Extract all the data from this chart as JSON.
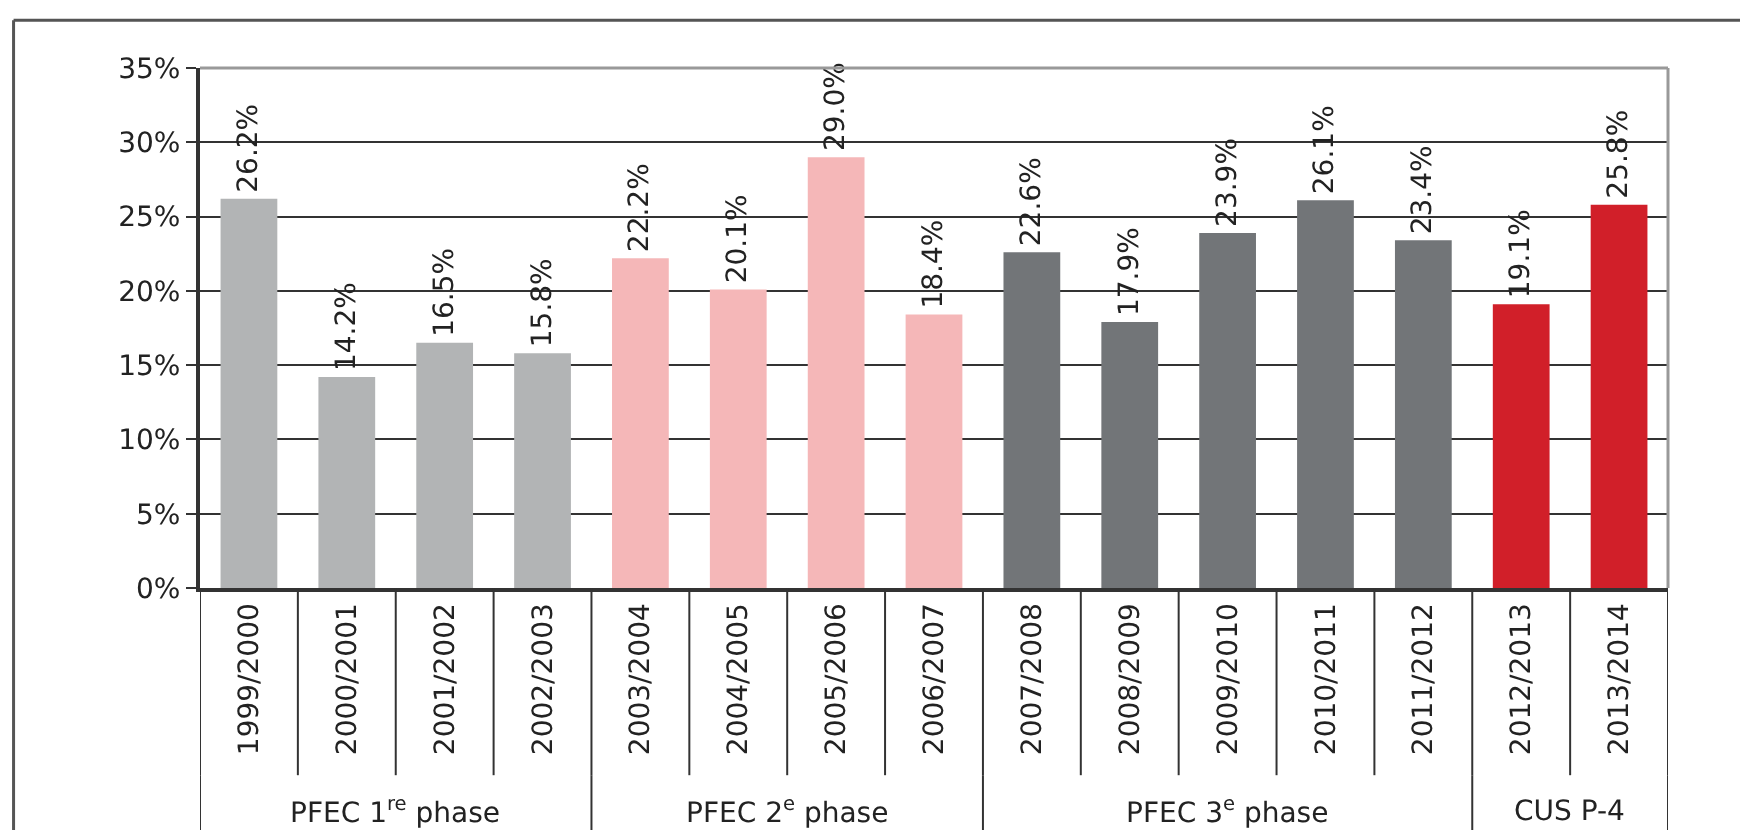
{
  "chart_data": {
    "type": "bar",
    "categories": [
      "1999/2000",
      "2000/2001",
      "2001/2002",
      "2002/2003",
      "2003/2004",
      "2004/2005",
      "2005/2006",
      "2006/2007",
      "2007/2008",
      "2008/2009",
      "2009/2010",
      "2010/2011",
      "2011/2012",
      "2012/2013",
      "2013/2014"
    ],
    "values": [
      26.2,
      14.2,
      16.5,
      15.8,
      22.2,
      20.1,
      29.0,
      18.4,
      22.6,
      17.9,
      23.9,
      26.1,
      23.4,
      19.1,
      25.8
    ],
    "value_labels": [
      "26.2%",
      "14.2%",
      "16.5%",
      "15.8%",
      "22.2%",
      "20.1%",
      "29.0%",
      "18.4%",
      "22.6%",
      "17.9%",
      "23.9%",
      "26.1%",
      "23.4%",
      "19.1%",
      "25.8%"
    ],
    "colors": [
      "#b2b4b5",
      "#b2b4b5",
      "#b2b4b5",
      "#b2b4b5",
      "#f5b7b8",
      "#f5b7b8",
      "#f5b7b8",
      "#f5b7b8",
      "#727578",
      "#727578",
      "#727578",
      "#727578",
      "#727578",
      "#d11f29",
      "#d11f29"
    ],
    "ylim": [
      0,
      35
    ],
    "yticks": [
      {
        "value": 0,
        "label": "0%"
      },
      {
        "value": 5,
        "label": "5%"
      },
      {
        "value": 10,
        "label": "10%"
      },
      {
        "value": 15,
        "label": "15%"
      },
      {
        "value": 20,
        "label": "20%"
      },
      {
        "value": 25,
        "label": "25%"
      },
      {
        "value": 30,
        "label": "30%"
      },
      {
        "value": 35,
        "label": "35%"
      }
    ],
    "grid": "y",
    "annotations": [
      "PFEC 1$^{re}$ phase",
      "PFEC 2$^{e}$ phase",
      "PFEC 3$^{e}$ phase",
      "CUS P-4"
    ]
  }
}
